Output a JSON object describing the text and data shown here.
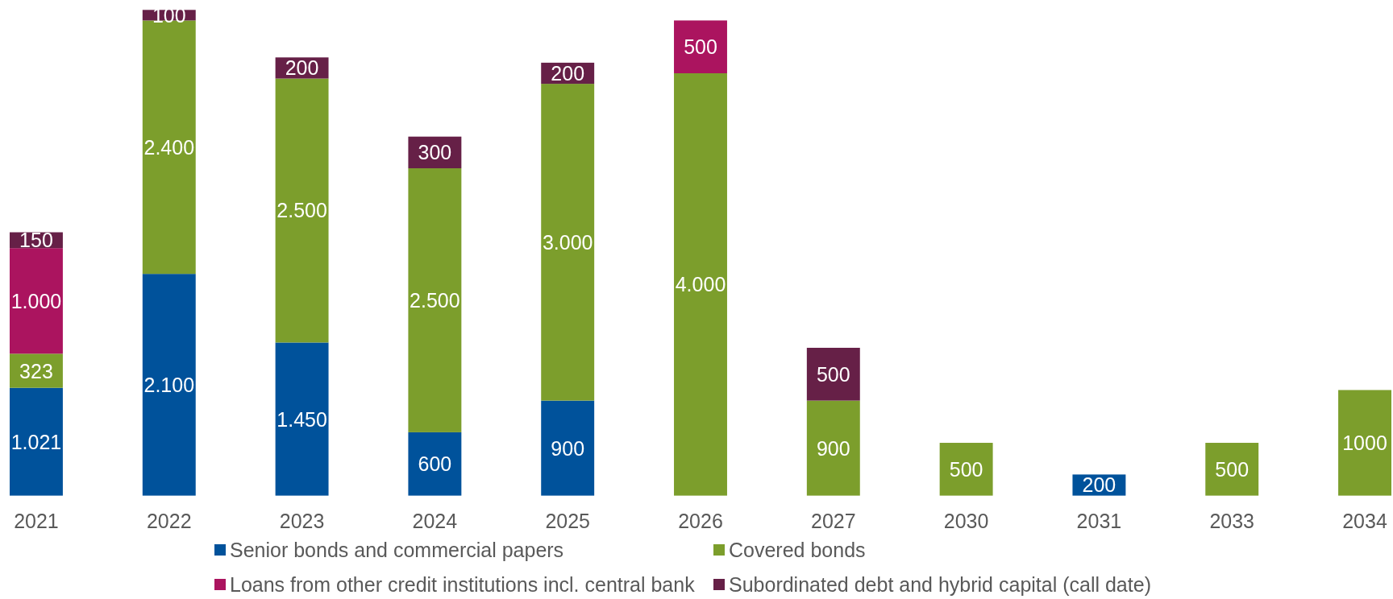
{
  "chart_data": {
    "type": "bar",
    "stacked": true,
    "legend": "bottom",
    "categories": [
      "2021",
      "2022",
      "2023",
      "2024",
      "2025",
      "2026",
      "2027",
      "2030",
      "2031",
      "2033",
      "2034"
    ],
    "series": [
      {
        "name": "Senior bonds and commercial papers",
        "color": "#00529b",
        "values": [
          1021,
          2100,
          1450,
          600,
          900,
          null,
          null,
          null,
          200,
          null,
          null
        ],
        "value_labels": [
          "1.021",
          "2.100",
          "1.450",
          "600",
          "900",
          null,
          null,
          null,
          "200",
          null,
          null
        ]
      },
      {
        "name": "Covered bonds",
        "color": "#7c9e2c",
        "values": [
          323,
          2400,
          2500,
          2500,
          3000,
          4000,
          900,
          500,
          null,
          500,
          1000
        ],
        "value_labels": [
          "323",
          "2.400",
          "2.500",
          "2.500",
          "3.000",
          "4.000",
          "900",
          "500",
          null,
          "500",
          "1000"
        ]
      },
      {
        "name": "Loans from other credit institutions incl. central bank",
        "color": "#ab145f",
        "values": [
          1000,
          null,
          null,
          null,
          null,
          500,
          null,
          null,
          null,
          null,
          null
        ],
        "value_labels": [
          "1.000",
          null,
          null,
          null,
          null,
          "500",
          null,
          null,
          null,
          null,
          null
        ]
      },
      {
        "name": "Subordinated debt and hybrid capital (call date)",
        "color": "#662047",
        "values": [
          150,
          100,
          200,
          300,
          200,
          null,
          500,
          null,
          null,
          null,
          null
        ],
        "value_labels": [
          "150",
          "100",
          "200",
          "300",
          "200",
          null,
          "500",
          null,
          null,
          null,
          null
        ]
      }
    ]
  }
}
